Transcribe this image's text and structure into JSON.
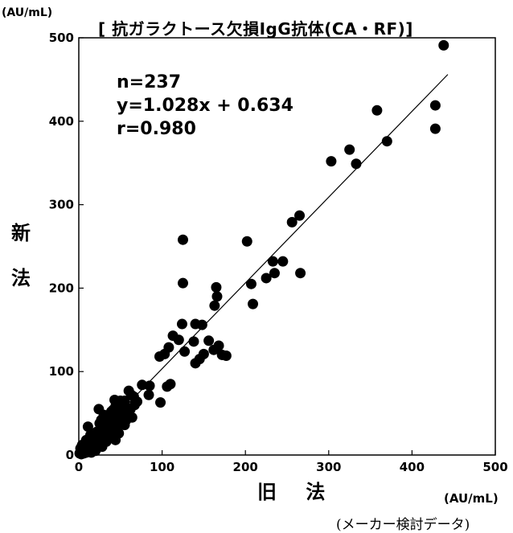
{
  "chart_data": {
    "type": "scatter",
    "title": "[ 抗ガラクトース欠損IgG抗体(CA・RF)]",
    "xlabel": "旧 法",
    "ylabel": "新法",
    "x_unit": "(AU/mL)",
    "y_unit": "(AU/mL)",
    "xlim": [
      0,
      500
    ],
    "ylim": [
      0,
      500
    ],
    "x_ticks": [
      "0",
      "100",
      "200",
      "300",
      "400",
      "500"
    ],
    "y_ticks": [
      "0",
      "100",
      "200",
      "300",
      "400",
      "500"
    ],
    "grid": false,
    "annotations": [
      "n=237",
      "y=1.028x + 0.634",
      "r=0.980"
    ],
    "regression": {
      "slope": 1.028,
      "intercept": 0.634,
      "x_range": [
        0,
        443
      ]
    },
    "points": [
      [
        438,
        491
      ],
      [
        428,
        419
      ],
      [
        428,
        391
      ],
      [
        358,
        413
      ],
      [
        370,
        376
      ],
      [
        325,
        366
      ],
      [
        333,
        349
      ],
      [
        303,
        352
      ],
      [
        265,
        287
      ],
      [
        256,
        279
      ],
      [
        266,
        218
      ],
      [
        245,
        232
      ],
      [
        233,
        232
      ],
      [
        235,
        218
      ],
      [
        225,
        212
      ],
      [
        202,
        256
      ],
      [
        207,
        205
      ],
      [
        209,
        181
      ],
      [
        165,
        201
      ],
      [
        166,
        190
      ],
      [
        163,
        179
      ],
      [
        125,
        258
      ],
      [
        125,
        206
      ],
      [
        124,
        157
      ],
      [
        140,
        157
      ],
      [
        148,
        156
      ],
      [
        113,
        143
      ],
      [
        120,
        138
      ],
      [
        127,
        124
      ],
      [
        108,
        129
      ],
      [
        103,
        121
      ],
      [
        97,
        118
      ],
      [
        138,
        136
      ],
      [
        150,
        121
      ],
      [
        145,
        115
      ],
      [
        140,
        110
      ],
      [
        156,
        137
      ],
      [
        162,
        126
      ],
      [
        168,
        131
      ],
      [
        172,
        120
      ],
      [
        177,
        119
      ],
      [
        98,
        63
      ],
      [
        110,
        85
      ],
      [
        106,
        82
      ],
      [
        84,
        72
      ],
      [
        85,
        83
      ],
      [
        76,
        84
      ],
      [
        60,
        77
      ],
      [
        63,
        72
      ],
      [
        66,
        70
      ],
      [
        55,
        65
      ],
      [
        43,
        66
      ],
      [
        50,
        65
      ],
      [
        57,
        57
      ],
      [
        48,
        58
      ],
      [
        46,
        50
      ],
      [
        41,
        54
      ],
      [
        52,
        47
      ],
      [
        58,
        47
      ],
      [
        64,
        45
      ],
      [
        57,
        42
      ],
      [
        36,
        40
      ],
      [
        32,
        45
      ],
      [
        30,
        35
      ],
      [
        24,
        55
      ],
      [
        25,
        38
      ],
      [
        22,
        28
      ],
      [
        18,
        26
      ],
      [
        14,
        24
      ],
      [
        11,
        34
      ],
      [
        9,
        18
      ],
      [
        7,
        14
      ],
      [
        5,
        10
      ],
      [
        3,
        5
      ],
      [
        1,
        2
      ],
      [
        8,
        4
      ],
      [
        12,
        9
      ],
      [
        16,
        13
      ],
      [
        20,
        19
      ],
      [
        26,
        24
      ],
      [
        34,
        27
      ],
      [
        38,
        33
      ],
      [
        42,
        38
      ],
      [
        46,
        41
      ],
      [
        50,
        44
      ],
      [
        53,
        51
      ],
      [
        38,
        25
      ],
      [
        33,
        16
      ],
      [
        40,
        22
      ],
      [
        44,
        18
      ],
      [
        28,
        10
      ],
      [
        20,
        5
      ],
      [
        15,
        3
      ],
      [
        10,
        6
      ],
      [
        6,
        2
      ],
      [
        3,
        1
      ],
      [
        2,
        8
      ],
      [
        4,
        12
      ],
      [
        12,
        17
      ],
      [
        17,
        7
      ],
      [
        23,
        13
      ],
      [
        29,
        21
      ],
      [
        35,
        31
      ],
      [
        39,
        43
      ],
      [
        45,
        35
      ],
      [
        48,
        26
      ],
      [
        30,
        48
      ],
      [
        27,
        42
      ],
      [
        55,
        36
      ],
      [
        62,
        55
      ],
      [
        67,
        60
      ],
      [
        70,
        64
      ],
      [
        44,
        58
      ],
      [
        39,
        52
      ],
      [
        31,
        31
      ],
      [
        25,
        15
      ],
      [
        19,
        20
      ],
      [
        13,
        11
      ],
      [
        6,
        7
      ],
      [
        9,
        3
      ]
    ]
  }
}
